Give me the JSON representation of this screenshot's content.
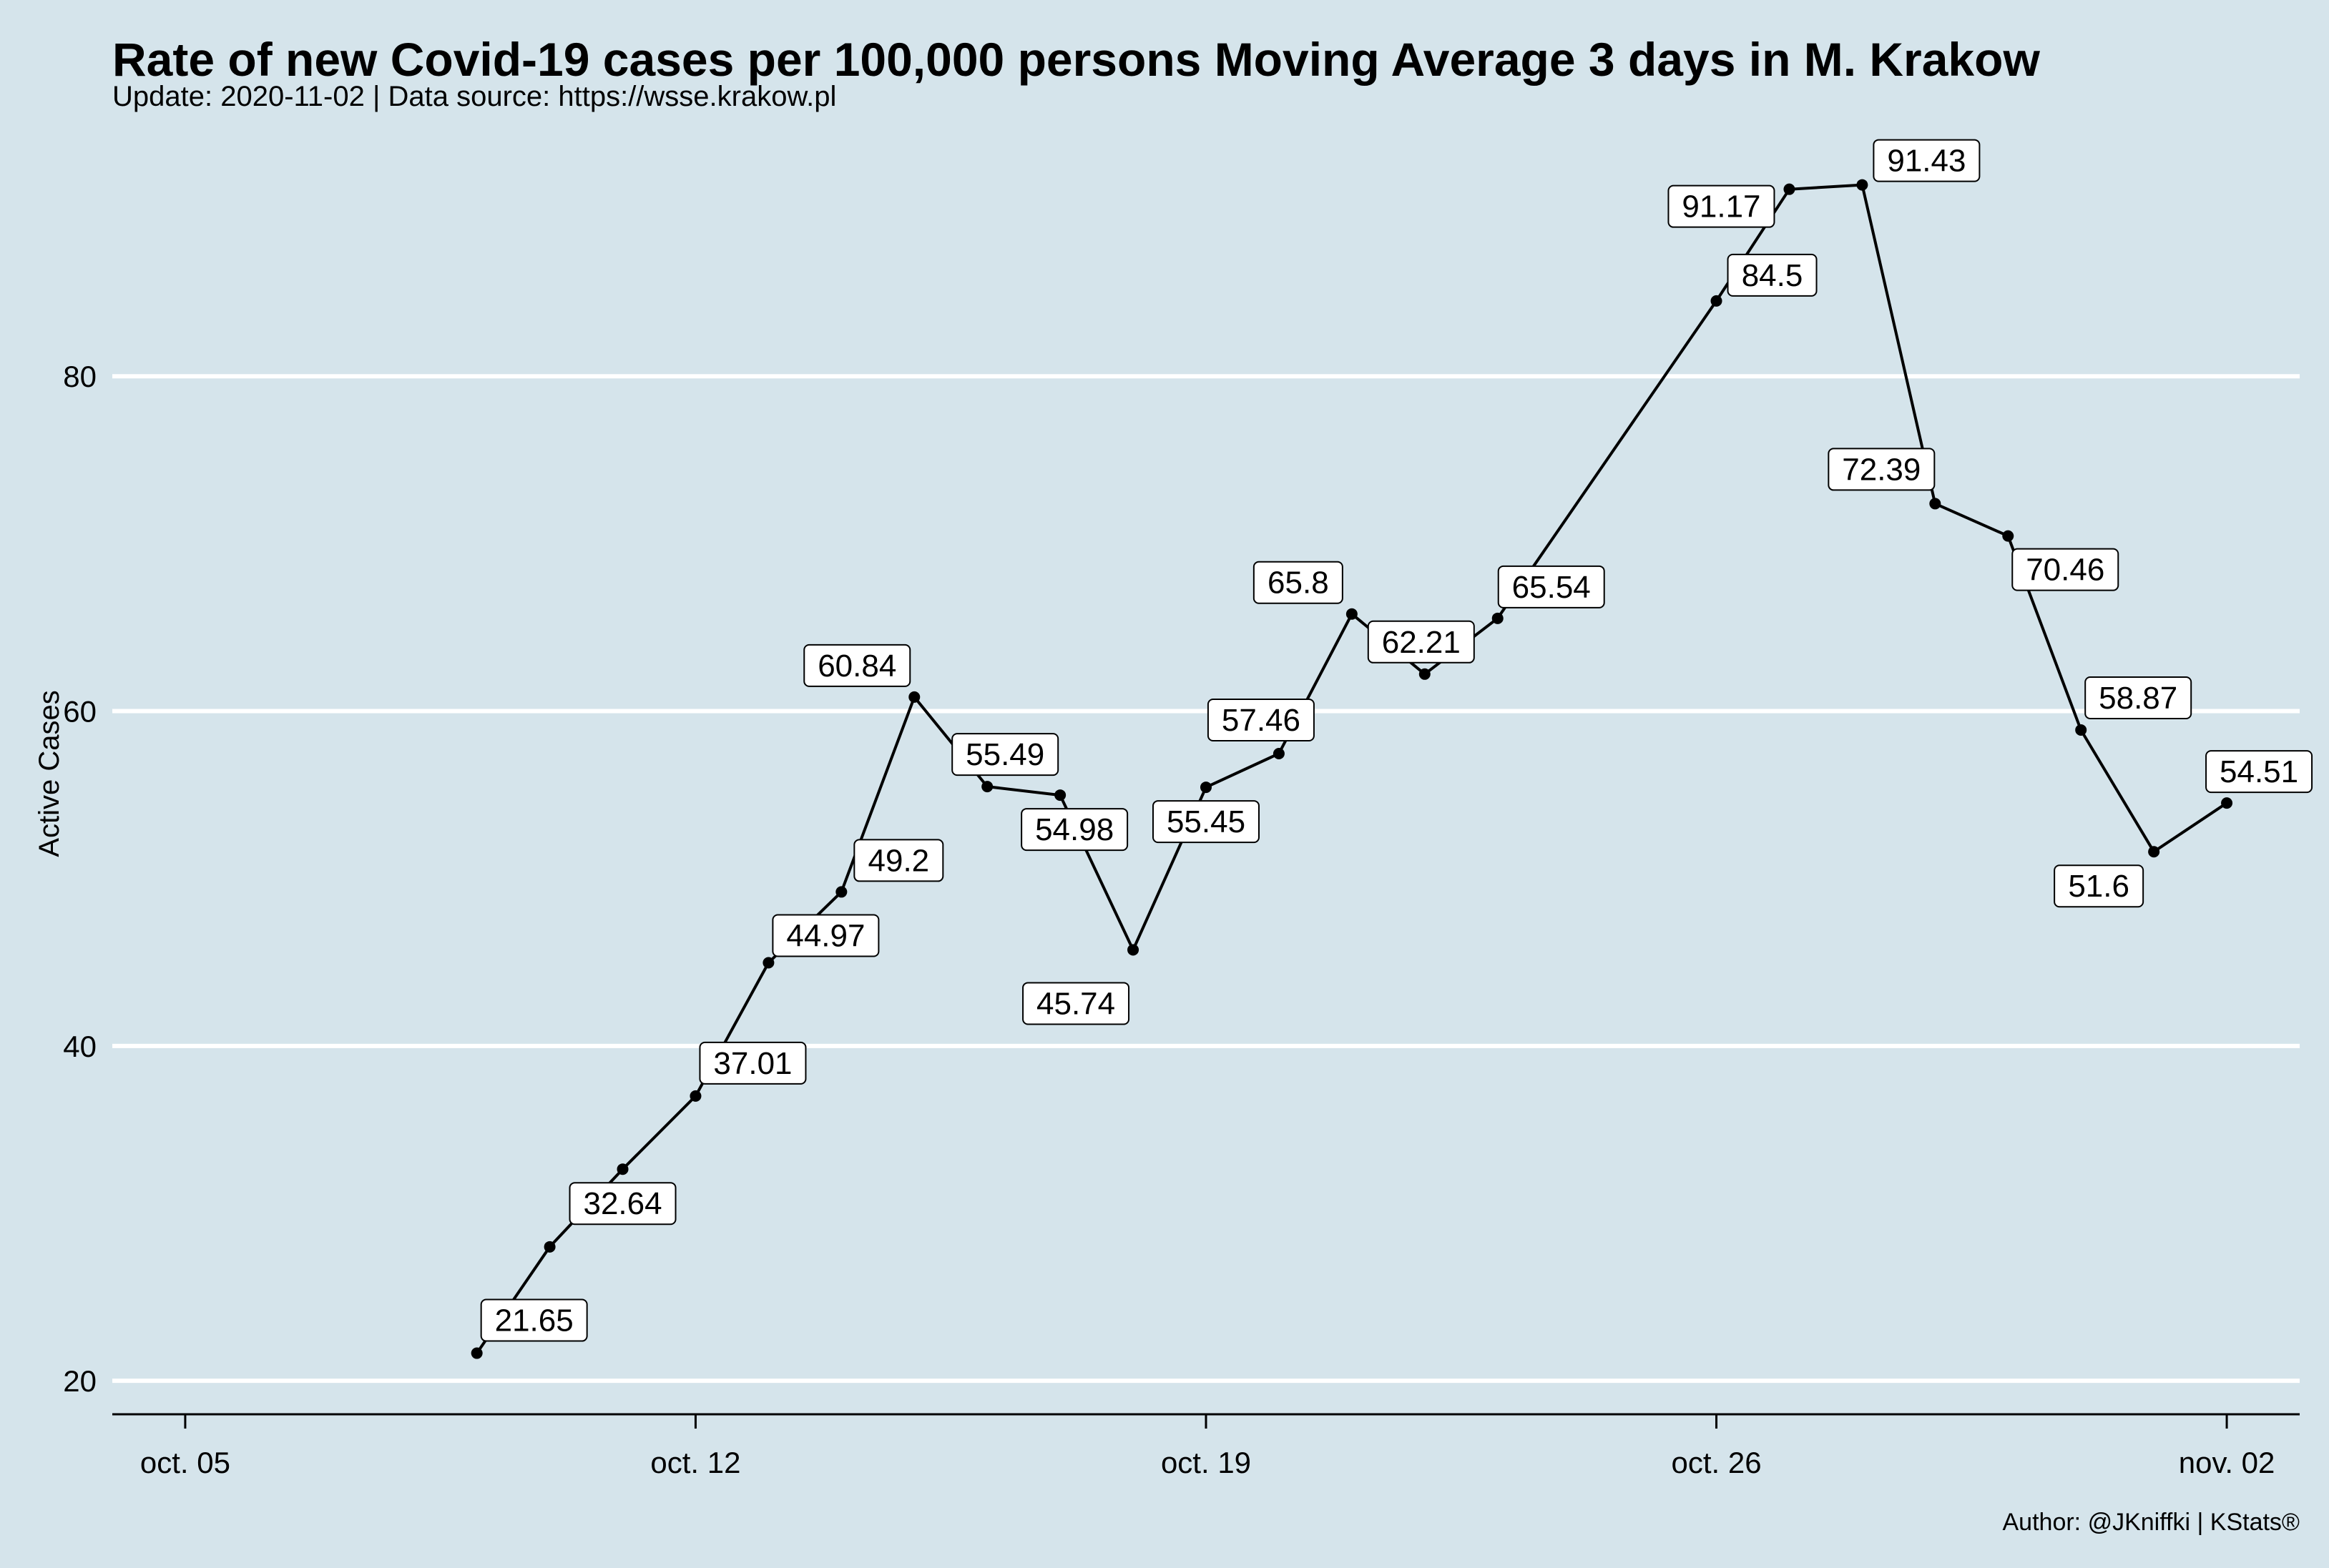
{
  "chart_data": {
    "type": "line",
    "title": "Rate of new Covid-19 cases per 100,000 persons Moving Average 3 days in M. Krakow",
    "subtitle": "Update: 2020-11-02 | Data source: https://wsse.krakow.pl",
    "ylabel": "Active Cases",
    "xlabel": "",
    "caption": "Author: @JKniffki | KStats®",
    "ylim": [
      18,
      95
    ],
    "xlim": [
      "2020-10-04",
      "2020-11-03"
    ],
    "yticks": [
      20,
      40,
      60,
      80
    ],
    "xticks": [
      {
        "date": "2020-10-05",
        "label": "oct. 05"
      },
      {
        "date": "2020-10-12",
        "label": "oct. 12"
      },
      {
        "date": "2020-10-19",
        "label": "oct. 19"
      },
      {
        "date": "2020-10-26",
        "label": "oct. 26"
      },
      {
        "date": "2020-11-02",
        "label": "nov. 02"
      }
    ],
    "grid": "horizontal major",
    "legend": "none",
    "line_color": "#000000",
    "background_color": "#d5e4eb",
    "series": [
      {
        "points": [
          {
            "x": "2020-10-09",
            "y": 21.65,
            "label": "21.65"
          },
          {
            "x": "2020-10-10",
            "y": 28.0
          },
          {
            "x": "2020-10-11",
            "y": 32.64,
            "label": "32.64"
          },
          {
            "x": "2020-10-12",
            "y": 37.01,
            "label": "37.01"
          },
          {
            "x": "2020-10-13",
            "y": 44.97,
            "label": "44.97"
          },
          {
            "x": "2020-10-14",
            "y": 49.2,
            "label": "49.2"
          },
          {
            "x": "2020-10-15",
            "y": 60.84,
            "label": "60.84"
          },
          {
            "x": "2020-10-16",
            "y": 55.49,
            "label": "55.49"
          },
          {
            "x": "2020-10-17",
            "y": 54.98,
            "label": "54.98"
          },
          {
            "x": "2020-10-18",
            "y": 45.74,
            "label": "45.74"
          },
          {
            "x": "2020-10-19",
            "y": 55.45,
            "label": "55.45"
          },
          {
            "x": "2020-10-20",
            "y": 57.46,
            "label": "57.46"
          },
          {
            "x": "2020-10-21",
            "y": 65.8,
            "label": "65.8"
          },
          {
            "x": "2020-10-22",
            "y": 62.21,
            "label": "62.21"
          },
          {
            "x": "2020-10-23",
            "y": 65.54,
            "label": "65.54"
          },
          {
            "x": "2020-10-26",
            "y": 84.5,
            "label": "84.5"
          },
          {
            "x": "2020-10-27",
            "y": 91.17,
            "label": "91.17"
          },
          {
            "x": "2020-10-28",
            "y": 91.43,
            "label": "91.43"
          },
          {
            "x": "2020-10-29",
            "y": 72.39,
            "label": "72.39"
          },
          {
            "x": "2020-10-30",
            "y": 70.46,
            "label": "70.46"
          },
          {
            "x": "2020-10-31",
            "y": 58.87,
            "label": "58.87"
          },
          {
            "x": "2020-11-01",
            "y": 51.6,
            "label": "51.6"
          },
          {
            "x": "2020-11-02",
            "y": 54.51,
            "label": "54.51"
          }
        ]
      }
    ]
  }
}
